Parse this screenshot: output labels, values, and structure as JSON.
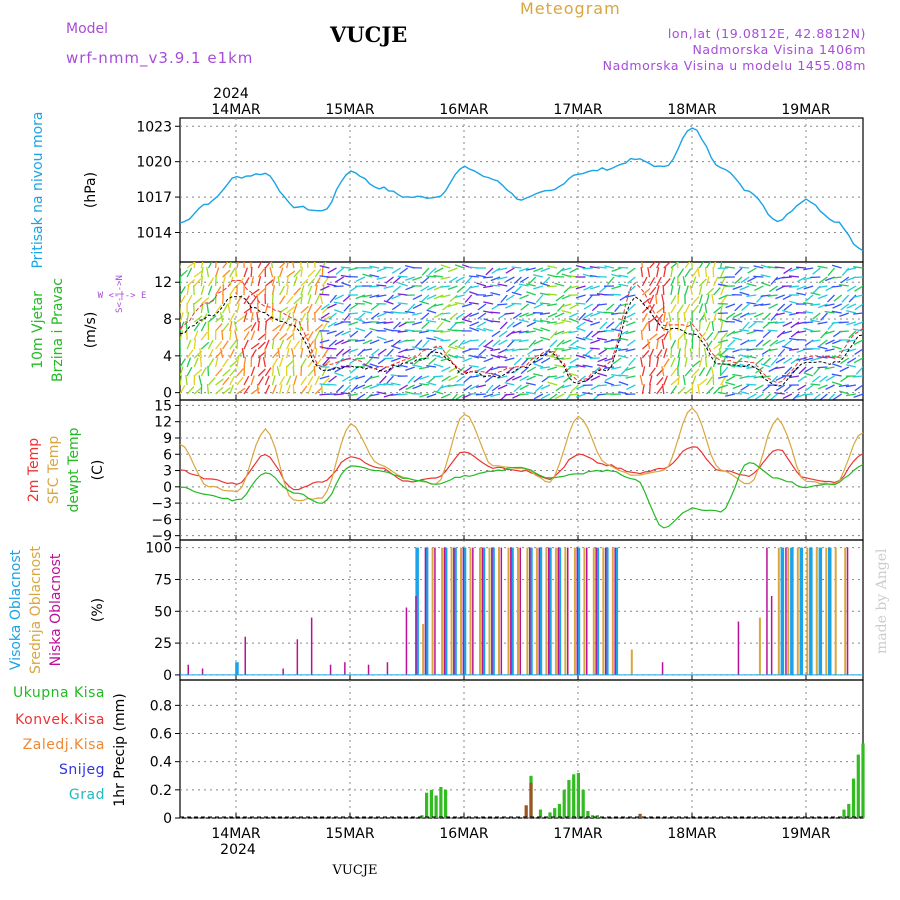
{
  "header": {
    "model_label": "Model",
    "model_name": "wrf-nmm_v3.9.1  e1km",
    "station": "VUCJE",
    "title": "Meteogram",
    "lonlat": "lon,lat (19.0812E, 42.8812N)",
    "elevation": "Nadmorska Visina 1406m",
    "model_elevation": "Nadmorska Visina u modelu 1455.08m"
  },
  "footer": {
    "station": "VUCJE",
    "watermark": "made by Angel"
  },
  "time_axis": {
    "year": "2024",
    "days": [
      "14MAR",
      "15MAR",
      "16MAR",
      "17MAR",
      "18MAR",
      "19MAR"
    ]
  },
  "colors": {
    "pressure": "#1aa3e6",
    "temp2m": "#ee3333",
    "sfc_temp": "#d9a640",
    "dewpt": "#22bb22",
    "wind_mean": "#000000",
    "gust": "#ee3333",
    "cloud_high": "#1aa3e6",
    "cloud_mid": "#d9a640",
    "cloud_low": "#bb1199",
    "precip_total": "#33bb22",
    "precip_conv": "#ee3333",
    "header_purple": "#a64dd9",
    "header_gold": "#d9a640"
  },
  "chart_data": [
    {
      "type": "line",
      "panel": "pressure",
      "ylabel": [
        "Pritisak na nivou mora",
        "(hPa)"
      ],
      "yticks": [
        1014,
        1017,
        1020,
        1023
      ],
      "ylim": [
        1011.5,
        1023.7
      ],
      "x_hours": [
        0,
        6,
        12,
        18,
        24,
        30,
        36,
        42,
        48,
        54,
        60,
        66,
        72,
        78,
        84,
        90,
        96,
        102,
        108,
        114,
        120,
        126,
        132,
        138,
        144
      ],
      "series": [
        {
          "values": [
            1014.8,
            1016.5,
            1018.7,
            1019.0,
            1016.2,
            1015.8,
            1019.2,
            1017.8,
            1017.0,
            1017.0,
            1019.5,
            1018.5,
            1016.8,
            1017.5,
            1019.0,
            1019.4,
            1020.2,
            1019.5,
            1022.8,
            1019.6,
            1017.5,
            1015.0,
            1016.8,
            1015.0,
            1012.4
          ]
        }
      ]
    },
    {
      "type": "line",
      "panel": "wind",
      "ylabel": [
        "10m Vjetar",
        "Brzina i Pravac",
        "(m/s)"
      ],
      "compass_label": "W  <-|->  E",
      "compass_vertical": "N",
      "compass_south": "S",
      "yticks": [
        0,
        4,
        8,
        12
      ],
      "ylim": [
        -0.8,
        14.2
      ],
      "x_hours": [
        0,
        6,
        12,
        18,
        24,
        30,
        36,
        42,
        48,
        54,
        60,
        66,
        72,
        78,
        84,
        90,
        96,
        102,
        108,
        114,
        120,
        126,
        132,
        138,
        144
      ],
      "series": [
        {
          "name": "mean",
          "values": [
            6.5,
            8.2,
            10.5,
            8.5,
            7.2,
            2.4,
            3.0,
            2.4,
            3.2,
            4.3,
            2.1,
            1.8,
            2.6,
            4.3,
            1.0,
            2.5,
            10.5,
            7.0,
            6.5,
            3.0,
            2.8,
            0.8,
            3.5,
            3.3,
            6.4
          ]
        },
        {
          "name": "gust",
          "values": [
            7.0,
            10.0,
            12.2,
            9.5,
            8.0,
            2.8,
            3.5,
            2.7,
            3.6,
            5.0,
            2.4,
            2.0,
            3.0,
            4.6,
            1.3,
            3.0,
            12.0,
            7.5,
            7.2,
            3.5,
            3.2,
            1.2,
            3.9,
            3.8,
            7.0
          ]
        }
      ]
    },
    {
      "type": "line",
      "panel": "temperature",
      "ylabel": [
        "2m Temp",
        "SFC Temp",
        "dewpt Temp",
        "(C)"
      ],
      "yticks": [
        -9,
        -6,
        -3,
        0,
        3,
        6,
        9,
        12,
        15
      ],
      "ylim": [
        -9.8,
        16
      ],
      "x_hours": [
        0,
        6,
        12,
        18,
        24,
        30,
        36,
        42,
        48,
        54,
        60,
        66,
        72,
        78,
        84,
        90,
        96,
        102,
        108,
        114,
        120,
        126,
        132,
        138,
        144
      ],
      "series": [
        {
          "name": "2m Temp",
          "values": [
            3.0,
            1.5,
            0.5,
            6.0,
            -0.5,
            1.0,
            5.5,
            3.5,
            1.0,
            1.5,
            6.5,
            3.5,
            3.0,
            1.5,
            6.0,
            4.0,
            2.5,
            3.5,
            7.5,
            3.0,
            2.0,
            7.0,
            1.5,
            0.8,
            6.0
          ]
        },
        {
          "name": "SFC Temp",
          "values": [
            8.0,
            0.0,
            -1.0,
            10.5,
            -2.5,
            -2.0,
            11.5,
            4.0,
            1.5,
            0.5,
            13.5,
            4.0,
            3.5,
            1.0,
            13.0,
            4.0,
            2.0,
            3.0,
            14.5,
            3.0,
            0.5,
            12.5,
            1.0,
            0.5,
            10.0
          ]
        },
        {
          "name": "dewpt Temp",
          "values": [
            0.0,
            -1.5,
            -2.5,
            2.5,
            -1.0,
            -3.0,
            4.0,
            3.0,
            1.5,
            0.5,
            2.0,
            3.0,
            3.5,
            1.5,
            2.5,
            3.0,
            1.5,
            -7.5,
            -4.0,
            -4.5,
            4.5,
            1.5,
            0.0,
            0.5,
            4.0
          ]
        }
      ]
    },
    {
      "type": "bar",
      "panel": "cloud",
      "ylabel": [
        "Visoka Oblacnost",
        "Srednja Oblacnost",
        "Niska Oblacnost",
        "(%)"
      ],
      "yticks": [
        0,
        25,
        50,
        75,
        100
      ],
      "ylim": [
        -4,
        106
      ],
      "series": [
        {
          "name": "Visoka Oblacnost",
          "x_hours": [
            12,
            50,
            52,
            56,
            58,
            60,
            64,
            66,
            70,
            74,
            76,
            78,
            80,
            84,
            88,
            90,
            92,
            127,
            129,
            131,
            133,
            135,
            137
          ],
          "values": [
            10,
            100,
            100,
            100,
            100,
            100,
            100,
            100,
            100,
            100,
            100,
            100,
            100,
            100,
            100,
            100,
            100,
            100,
            100,
            100,
            100,
            100,
            100
          ]
        },
        {
          "name": "Srednja Oblacnost",
          "x_hours": [
            51,
            53,
            55,
            57,
            59,
            61,
            63,
            65,
            67,
            69,
            71,
            73,
            75,
            77,
            79,
            81,
            83,
            85,
            87,
            89,
            91,
            95,
            122,
            126,
            128,
            130,
            132,
            134,
            136,
            138,
            140
          ],
          "values": [
            40,
            100,
            100,
            100,
            100,
            100,
            100,
            100,
            100,
            100,
            100,
            100,
            100,
            100,
            100,
            100,
            100,
            100,
            100,
            100,
            100,
            20,
            45,
            100,
            100,
            100,
            100,
            100,
            100,
            100,
            100
          ]
        },
        {
          "name": "Niska Oblacnost",
          "x_hours": [
            2,
            5,
            14,
            22,
            25,
            28,
            32,
            35,
            40,
            44,
            48,
            50,
            52,
            54,
            56,
            58,
            60,
            62,
            64,
            66,
            68,
            70,
            72,
            74,
            76,
            78,
            80,
            82,
            84,
            86,
            88,
            90,
            92,
            102,
            118,
            124,
            125,
            128,
            141
          ],
          "values": [
            8,
            5,
            30,
            5,
            28,
            45,
            8,
            10,
            8,
            10,
            53,
            62,
            100,
            100,
            100,
            100,
            100,
            100,
            100,
            100,
            100,
            100,
            100,
            100,
            100,
            100,
            100,
            100,
            100,
            100,
            100,
            100,
            100,
            10,
            42,
            100,
            62,
            100,
            100
          ]
        }
      ]
    },
    {
      "type": "bar",
      "panel": "precip",
      "ylabel": [
        "1hr Precip (mm)"
      ],
      "legend": [
        "Ukupna Kisa",
        "Konvek.Kisa",
        "Zaledj.Kisa",
        "Snijeg",
        "Grad"
      ],
      "yticks": [
        0,
        0.2,
        0.4,
        0.6,
        0.8
      ],
      "ylim": [
        0,
        0.98
      ],
      "series": [
        {
          "name": "Ukupna Kisa",
          "x_hours": [
            51,
            52,
            53,
            54,
            55,
            56,
            74,
            76,
            78,
            79,
            80,
            81,
            82,
            83,
            84,
            85,
            86,
            87,
            88,
            140,
            141,
            142,
            143,
            144
          ],
          "values": [
            0.02,
            0.18,
            0.2,
            0.16,
            0.22,
            0.2,
            0.3,
            0.06,
            0.04,
            0.07,
            0.1,
            0.2,
            0.27,
            0.31,
            0.32,
            0.2,
            0.05,
            0.02,
            0.02,
            0.06,
            0.1,
            0.28,
            0.45,
            0.53
          ]
        },
        {
          "name": "Konvek.Kisa",
          "x_hours": [
            73,
            74,
            97
          ],
          "values": [
            0.09,
            0.25,
            0.03
          ]
        }
      ]
    }
  ]
}
